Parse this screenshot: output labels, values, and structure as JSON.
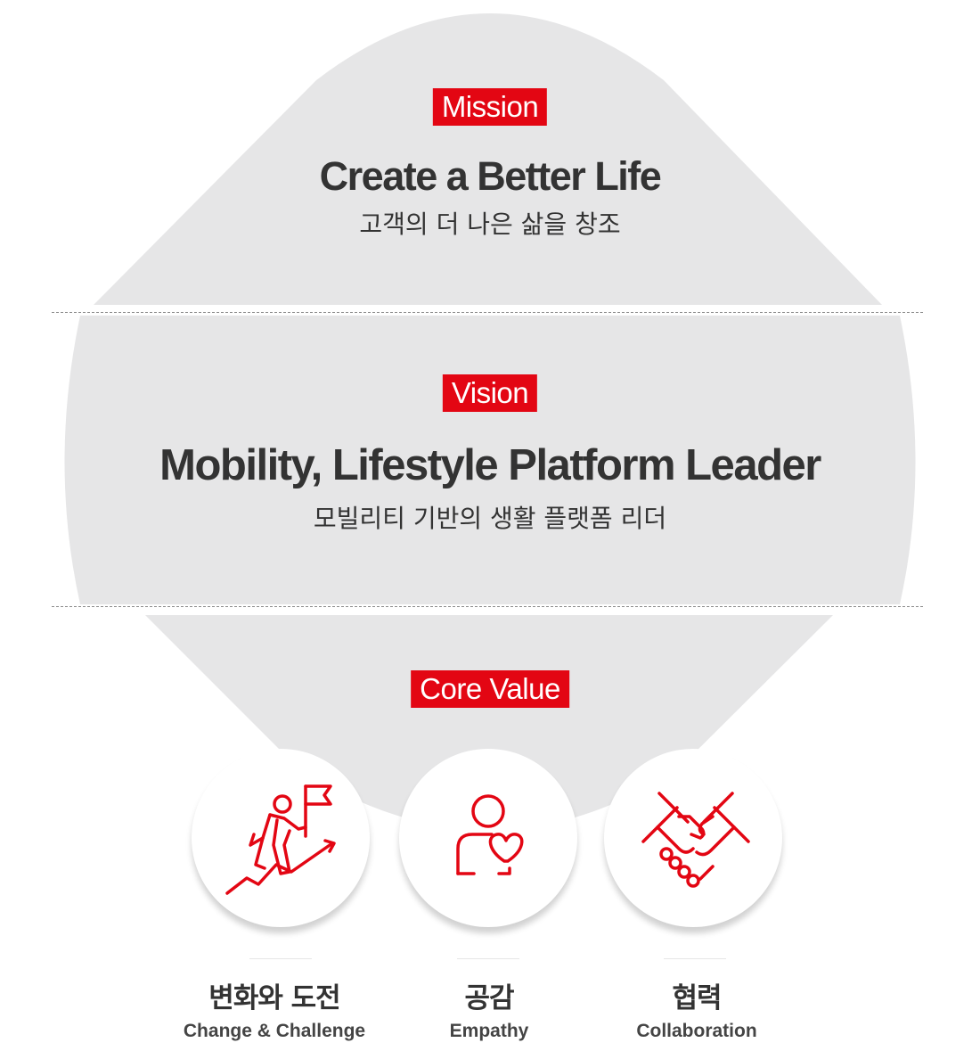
{
  "mission": {
    "tag": "Mission",
    "title": "Create a Better Life",
    "subtitle": "고객의 더 나은 삶을 창조"
  },
  "vision": {
    "tag": "Vision",
    "title": "Mobility, Lifestyle Platform Leader",
    "subtitle": "모빌리티 기반의 생활 플랫폼 리더"
  },
  "core_value": {
    "tag": "Core Value",
    "items": [
      {
        "icon": "climbing-flag-icon",
        "label_ko": "변화와 도전",
        "label_en": "Change & Challenge"
      },
      {
        "icon": "person-heart-icon",
        "label_ko": "공감",
        "label_en": "Empathy"
      },
      {
        "icon": "handshake-icon",
        "label_ko": "협력",
        "label_en": "Collaboration"
      }
    ]
  },
  "colors": {
    "accent": "#e30613",
    "shape_fill": "#e6e6e7",
    "text": "#333333"
  }
}
